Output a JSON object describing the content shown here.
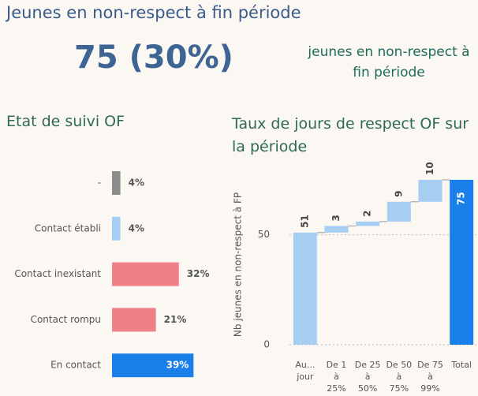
{
  "header": {
    "title": "Jeunes en non-respect à fin période",
    "kpi": "75 (30%)",
    "kpi_label": "jeunes en non-respect à fin période"
  },
  "chart_data": [
    {
      "type": "hbar",
      "title": "Etat de suivi OF",
      "categories": [
        "-",
        "Contact établi",
        "Contact inexistant",
        "Contact rompu",
        "En contact"
      ],
      "values": [
        4,
        4,
        32,
        21,
        39
      ],
      "value_labels": [
        "4%",
        "4%",
        "32%",
        "21%",
        "39%"
      ],
      "colors": [
        "#8c8c8c",
        "#a6cdf2",
        "#ef8088",
        "#ef8088",
        "#1a7fe8"
      ]
    },
    {
      "type": "waterfall",
      "title": "Taux de jours de respect OF sur la période",
      "y_label": "Nb jeunes en non-respect à FP",
      "categories": [
        "Au... jour",
        "De 1 à 25%",
        "De 25 à 50%",
        "De 50 à 75%",
        "De 75 à 99%",
        "Total"
      ],
      "values": [
        51,
        3,
        2,
        9,
        10,
        75
      ],
      "measures": [
        "relative",
        "relative",
        "relative",
        "relative",
        "relative",
        "total"
      ],
      "increase_color": "#a6cdf2",
      "total_color": "#1a7fe8",
      "ylim": [
        0,
        80
      ],
      "yticks": [
        0,
        50
      ],
      "grid": true
    }
  ]
}
